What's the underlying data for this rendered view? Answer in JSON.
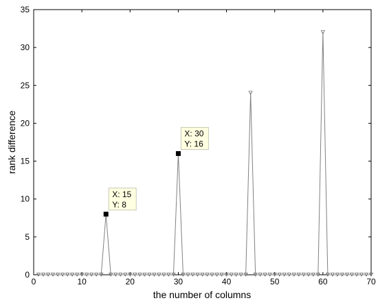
{
  "chart_data": {
    "type": "line",
    "x_label": "the number of columns",
    "y_label": "rank difference",
    "x": [
      1,
      2,
      3,
      4,
      5,
      6,
      7,
      8,
      9,
      10,
      11,
      12,
      13,
      14,
      15,
      16,
      17,
      18,
      19,
      20,
      21,
      22,
      23,
      24,
      25,
      26,
      27,
      28,
      29,
      30,
      31,
      32,
      33,
      34,
      35,
      36,
      37,
      38,
      39,
      40,
      41,
      42,
      43,
      44,
      45,
      46,
      47,
      48,
      49,
      50,
      51,
      52,
      53,
      54,
      55,
      56,
      57,
      58,
      59,
      60,
      61,
      62,
      63,
      64,
      65,
      66,
      67,
      68,
      69,
      70
    ],
    "series": [
      {
        "color": "#808080",
        "values": [
          0,
          0,
          0,
          0,
          0,
          0,
          0,
          0,
          0,
          0,
          0,
          0,
          0,
          0,
          8,
          0,
          0,
          0,
          0,
          0,
          0,
          0,
          0,
          0,
          0,
          0,
          0,
          0,
          0,
          16,
          0,
          0,
          0,
          0,
          0,
          0,
          0,
          0,
          0,
          0,
          0,
          0,
          0,
          0,
          24,
          0,
          0,
          0,
          0,
          0,
          0,
          0,
          0,
          0,
          0,
          0,
          0,
          0,
          0,
          32,
          0,
          0,
          0,
          0,
          0,
          0,
          0,
          0,
          0,
          0
        ]
      }
    ],
    "xlim": [
      0,
      70
    ],
    "xticks": [
      0,
      10,
      20,
      30,
      40,
      50,
      60,
      70
    ],
    "ylim": [
      0,
      35
    ],
    "yticks": [
      0,
      5,
      10,
      15,
      20,
      25,
      30,
      35
    ],
    "grid": false,
    "annotations": [
      {
        "x": 15,
        "y": 8,
        "lines": [
          "X: 15",
          "Y: 8"
        ]
      },
      {
        "x": 30,
        "y": 16,
        "lines": [
          "X: 30",
          "Y: 16"
        ]
      }
    ]
  }
}
